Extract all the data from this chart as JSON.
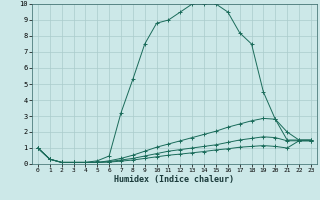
{
  "title": "",
  "xlabel": "Humidex (Indice chaleur)",
  "ylabel": "",
  "bg_color": "#cce8e8",
  "grid_color": "#aacccc",
  "line_color": "#1a6b5a",
  "xlim": [
    -0.5,
    23.5
  ],
  "ylim": [
    0,
    10
  ],
  "xticks": [
    0,
    1,
    2,
    3,
    4,
    5,
    6,
    7,
    8,
    9,
    10,
    11,
    12,
    13,
    14,
    15,
    16,
    17,
    18,
    19,
    20,
    21,
    22,
    23
  ],
  "yticks": [
    0,
    1,
    2,
    3,
    4,
    5,
    6,
    7,
    8,
    9,
    10
  ],
  "series": [
    {
      "x": [
        0,
        1,
        2,
        3,
        4,
        5,
        6,
        7,
        8,
        9,
        10,
        11,
        12,
        13,
        14,
        15,
        16,
        17,
        18,
        19,
        20,
        21,
        22,
        23
      ],
      "y": [
        1.0,
        0.3,
        0.1,
        0.1,
        0.1,
        0.2,
        0.5,
        3.2,
        5.3,
        7.5,
        8.8,
        9.0,
        9.5,
        10.0,
        10.0,
        10.0,
        9.5,
        8.2,
        7.5,
        4.5,
        2.8,
        1.5,
        1.5,
        1.5
      ]
    },
    {
      "x": [
        0,
        1,
        2,
        3,
        4,
        5,
        6,
        7,
        8,
        9,
        10,
        11,
        12,
        13,
        14,
        15,
        16,
        17,
        18,
        19,
        20,
        21,
        22,
        23
      ],
      "y": [
        1.0,
        0.3,
        0.1,
        0.1,
        0.1,
        0.1,
        0.2,
        0.35,
        0.55,
        0.8,
        1.05,
        1.25,
        1.45,
        1.65,
        1.85,
        2.05,
        2.3,
        2.5,
        2.7,
        2.85,
        2.8,
        2.0,
        1.5,
        1.5
      ]
    },
    {
      "x": [
        0,
        1,
        2,
        3,
        4,
        5,
        6,
        7,
        8,
        9,
        10,
        11,
        12,
        13,
        14,
        15,
        16,
        17,
        18,
        19,
        20,
        21,
        22,
        23
      ],
      "y": [
        1.0,
        0.3,
        0.1,
        0.1,
        0.1,
        0.1,
        0.15,
        0.25,
        0.35,
        0.5,
        0.65,
        0.8,
        0.9,
        1.0,
        1.1,
        1.2,
        1.35,
        1.5,
        1.6,
        1.7,
        1.65,
        1.45,
        1.45,
        1.45
      ]
    },
    {
      "x": [
        0,
        1,
        2,
        3,
        4,
        5,
        6,
        7,
        8,
        9,
        10,
        11,
        12,
        13,
        14,
        15,
        16,
        17,
        18,
        19,
        20,
        21,
        22,
        23
      ],
      "y": [
        1.0,
        0.3,
        0.1,
        0.1,
        0.1,
        0.1,
        0.12,
        0.18,
        0.25,
        0.35,
        0.45,
        0.55,
        0.62,
        0.7,
        0.78,
        0.88,
        0.95,
        1.05,
        1.1,
        1.15,
        1.1,
        1.0,
        1.45,
        1.45
      ]
    }
  ]
}
